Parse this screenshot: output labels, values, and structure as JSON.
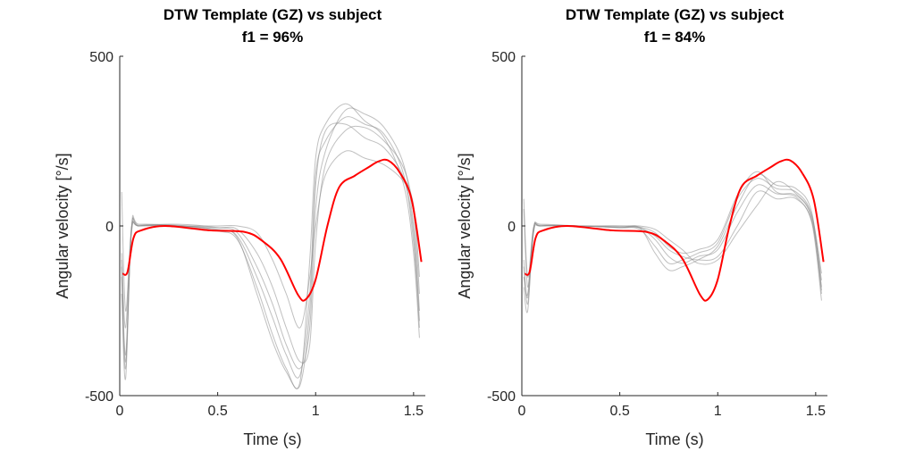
{
  "chart_data": [
    {
      "type": "line",
      "title": [
        "DTW Template (GZ) vs subject",
        "f1 = 96%"
      ],
      "xlabel": "Time (s)",
      "ylabel": "Angular velocity [°/s]",
      "xlim": [
        0,
        1.56
      ],
      "ylim": [
        -500,
        500
      ],
      "xticks": [
        0,
        0.5,
        1,
        1.5
      ],
      "xtick_labels": [
        "0",
        "0.5",
        "1",
        "1.5"
      ],
      "yticks": [
        -500,
        0,
        500
      ],
      "ytick_labels": [
        "-500",
        "0",
        "500"
      ],
      "grid": false,
      "template": {
        "color": "#ff0000",
        "x": [
          0.015,
          0.04,
          0.07,
          0.11,
          0.23,
          0.46,
          0.64,
          0.73,
          0.82,
          0.91,
          0.95,
          1.0,
          1.06,
          1.12,
          1.2,
          1.27,
          1.32,
          1.37,
          1.43,
          1.49,
          1.54
        ],
        "y": [
          -141,
          -135,
          -36,
          -13,
          0,
          -13,
          -18,
          -45,
          -97,
          -203,
          -216,
          -158,
          0,
          114,
          148,
          173,
          190,
          193,
          157,
          78,
          -106
        ]
      },
      "subjects": {
        "color": "#8c8c8c",
        "x": [
          0.01,
          0.03,
          0.06,
          0.1,
          0.3,
          0.5,
          0.6,
          0.7,
          0.78,
          0.85,
          0.92,
          0.97,
          1.0,
          1.05,
          1.15,
          1.25,
          1.35,
          1.45,
          1.5,
          1.53
        ],
        "curves": [
          [
            -150,
            -420,
            -10,
            0,
            0,
            -10,
            -30,
            -150,
            -270,
            -380,
            -440,
            -200,
            150,
            250,
            320,
            300,
            270,
            150,
            -50,
            -300
          ],
          [
            -100,
            -380,
            -20,
            0,
            5,
            -5,
            -20,
            -120,
            -230,
            -350,
            -420,
            -300,
            50,
            220,
            340,
            330,
            290,
            180,
            0,
            -250
          ],
          [
            -200,
            -450,
            -5,
            5,
            0,
            -15,
            -40,
            -180,
            -320,
            -420,
            -460,
            -100,
            200,
            300,
            360,
            310,
            260,
            120,
            -80,
            -330
          ],
          [
            -80,
            -300,
            -15,
            0,
            0,
            -5,
            -10,
            -80,
            -180,
            -300,
            -400,
            -350,
            -50,
            180,
            280,
            290,
            250,
            170,
            40,
            -200
          ],
          [
            -120,
            -400,
            -8,
            2,
            2,
            -12,
            -35,
            -200,
            -340,
            -430,
            -470,
            -250,
            120,
            280,
            300,
            260,
            230,
            140,
            -20,
            -280
          ],
          [
            100,
            -250,
            -5,
            0,
            0,
            0,
            0,
            -20,
            -100,
            -200,
            -300,
            -150,
            0,
            150,
            220,
            200,
            180,
            130,
            60,
            -150
          ]
        ]
      }
    },
    {
      "type": "line",
      "title": [
        "DTW Template (GZ) vs subject",
        "f1 = 84%"
      ],
      "xlabel": "Time (s)",
      "ylabel": "Angular velocity [°/s]",
      "xlim": [
        0,
        1.56
      ],
      "ylim": [
        -500,
        500
      ],
      "xticks": [
        0,
        0.5,
        1,
        1.5
      ],
      "xtick_labels": [
        "0",
        "0.5",
        "1",
        "1.5"
      ],
      "yticks": [
        -500,
        0,
        500
      ],
      "ytick_labels": [
        "-500",
        "0",
        "500"
      ],
      "grid": false,
      "template": {
        "color": "#ff0000",
        "x": [
          0.015,
          0.04,
          0.07,
          0.11,
          0.23,
          0.46,
          0.64,
          0.73,
          0.82,
          0.91,
          0.95,
          1.0,
          1.06,
          1.12,
          1.2,
          1.27,
          1.32,
          1.37,
          1.43,
          1.49,
          1.54
        ],
        "y": [
          -141,
          -135,
          -36,
          -13,
          0,
          -13,
          -18,
          -45,
          -97,
          -203,
          -216,
          -158,
          0,
          114,
          148,
          173,
          190,
          193,
          157,
          78,
          -106
        ]
      },
      "subjects": {
        "color": "#8c8c8c",
        "x": [
          0.01,
          0.03,
          0.06,
          0.1,
          0.3,
          0.5,
          0.6,
          0.68,
          0.75,
          0.82,
          0.9,
          1.0,
          1.1,
          1.2,
          1.3,
          1.4,
          1.48,
          1.53
        ],
        "curves": [
          [
            -150,
            -200,
            -10,
            0,
            0,
            -5,
            -5,
            -40,
            -90,
            -110,
            -90,
            -70,
            40,
            120,
            95,
            90,
            20,
            -200
          ],
          [
            -100,
            -230,
            -20,
            0,
            0,
            -5,
            -10,
            -60,
            -110,
            -100,
            -80,
            -50,
            80,
            140,
            110,
            100,
            30,
            -180
          ],
          [
            50,
            -180,
            -5,
            5,
            0,
            0,
            -5,
            -30,
            -70,
            -90,
            -100,
            -90,
            0,
            100,
            80,
            80,
            10,
            -220
          ],
          [
            -180,
            -250,
            -15,
            0,
            0,
            -5,
            -5,
            -80,
            -130,
            -120,
            -100,
            -60,
            60,
            150,
            120,
            110,
            40,
            -190
          ],
          [
            -120,
            -210,
            -8,
            2,
            0,
            -3,
            -3,
            -20,
            -60,
            -80,
            -70,
            -40,
            90,
            160,
            100,
            85,
            15,
            -160
          ],
          [
            80,
            -150,
            -5,
            0,
            0,
            0,
            0,
            -10,
            -40,
            -70,
            -110,
            -100,
            -20,
            60,
            130,
            95,
            30,
            -140
          ]
        ]
      }
    }
  ]
}
